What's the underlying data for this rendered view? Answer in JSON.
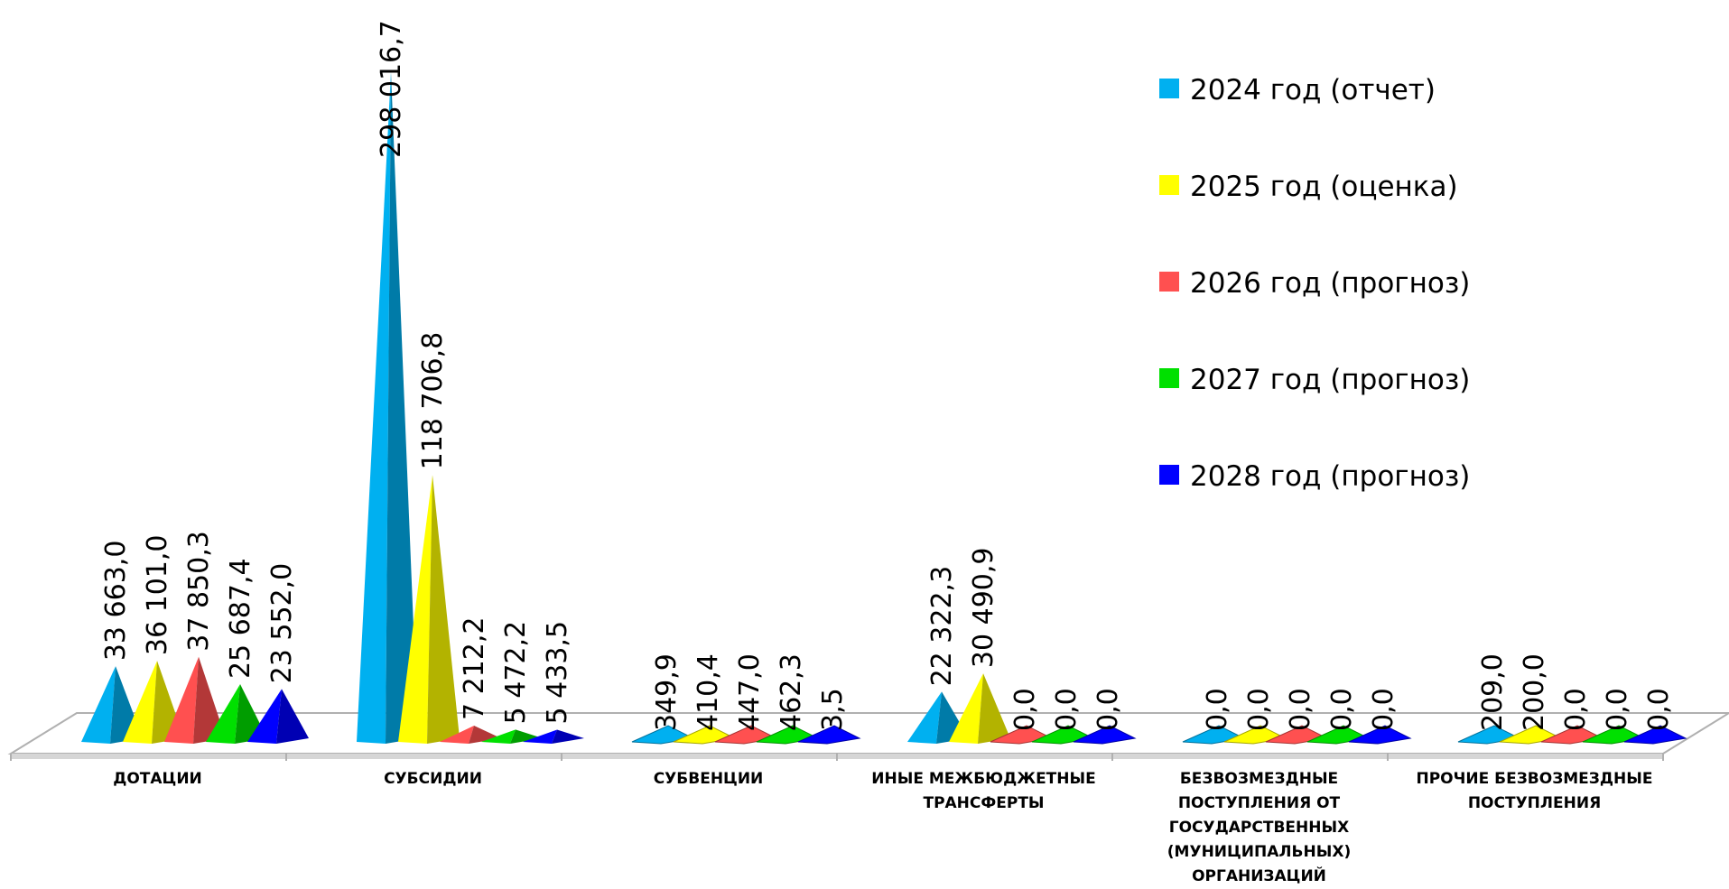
{
  "chart_data": {
    "type": "bar",
    "style": "3d-pyramid",
    "categories": [
      [
        "ДОТАЦИИ"
      ],
      [
        "СУБСИДИИ"
      ],
      [
        "СУБВЕНЦИИ"
      ],
      [
        "ИНЫЕ МЕЖБЮДЖЕТНЫЕ",
        "ТРАНСФЕРТЫ"
      ],
      [
        "БЕЗВОЗМЕЗДНЫЕ",
        "ПОСТУПЛЕНИЯ ОТ",
        "ГОСУДАРСТВЕННЫХ",
        "(МУНИЦИПАЛЬНЫХ)",
        "ОРГАНИЗАЦИЙ"
      ],
      [
        "ПРОЧИЕ БЕЗВОЗМЕЗДНЫЕ",
        "ПОСТУПЛЕНИЯ"
      ]
    ],
    "series": [
      {
        "name": "2024 год (отчет)",
        "color": "#00b0f0",
        "values": [
          33663.0,
          298016.7,
          349.9,
          22322.3,
          0.0,
          209.0
        ],
        "labels": [
          "33 663,0",
          "298 016,7",
          "349,9",
          "22 322,3",
          "0,0",
          "209,0"
        ]
      },
      {
        "name": "2025 год (оценка)",
        "color": "#ffff00",
        "values": [
          36101.0,
          118706.8,
          410.4,
          30490.9,
          0.0,
          200.0
        ],
        "labels": [
          "36 101,0",
          "118 706,8",
          "410,4",
          "30 490,9",
          "0,0",
          "200,0"
        ]
      },
      {
        "name": "2026 год (прогноз)",
        "color": "#ff5050",
        "values": [
          37850.3,
          7212.2,
          447.0,
          0.0,
          0.0,
          0.0
        ],
        "labels": [
          "37 850,3",
          "7 212,2",
          "447,0",
          "0,0",
          "0,0",
          "0,0"
        ]
      },
      {
        "name": "2027 год (прогноз)",
        "color": "#00e000",
        "values": [
          25687.4,
          5472.2,
          462.3,
          0.0,
          0.0,
          0.0
        ],
        "labels": [
          "25 687,4",
          "5 472,2",
          "462,3",
          "0,0",
          "0,0",
          "0,0"
        ]
      },
      {
        "name": "2028 год (прогноз)",
        "color": "#0000ff",
        "values": [
          23552.0,
          5433.5,
          3.5,
          0.0,
          0.0,
          0.0
        ],
        "labels": [
          "23 552,0",
          "5 433,5",
          "3,5",
          "0,0",
          "0,0",
          "0,0"
        ]
      }
    ],
    "ylim": [
      0,
      300000
    ],
    "grid": false,
    "legend_position": "right"
  }
}
